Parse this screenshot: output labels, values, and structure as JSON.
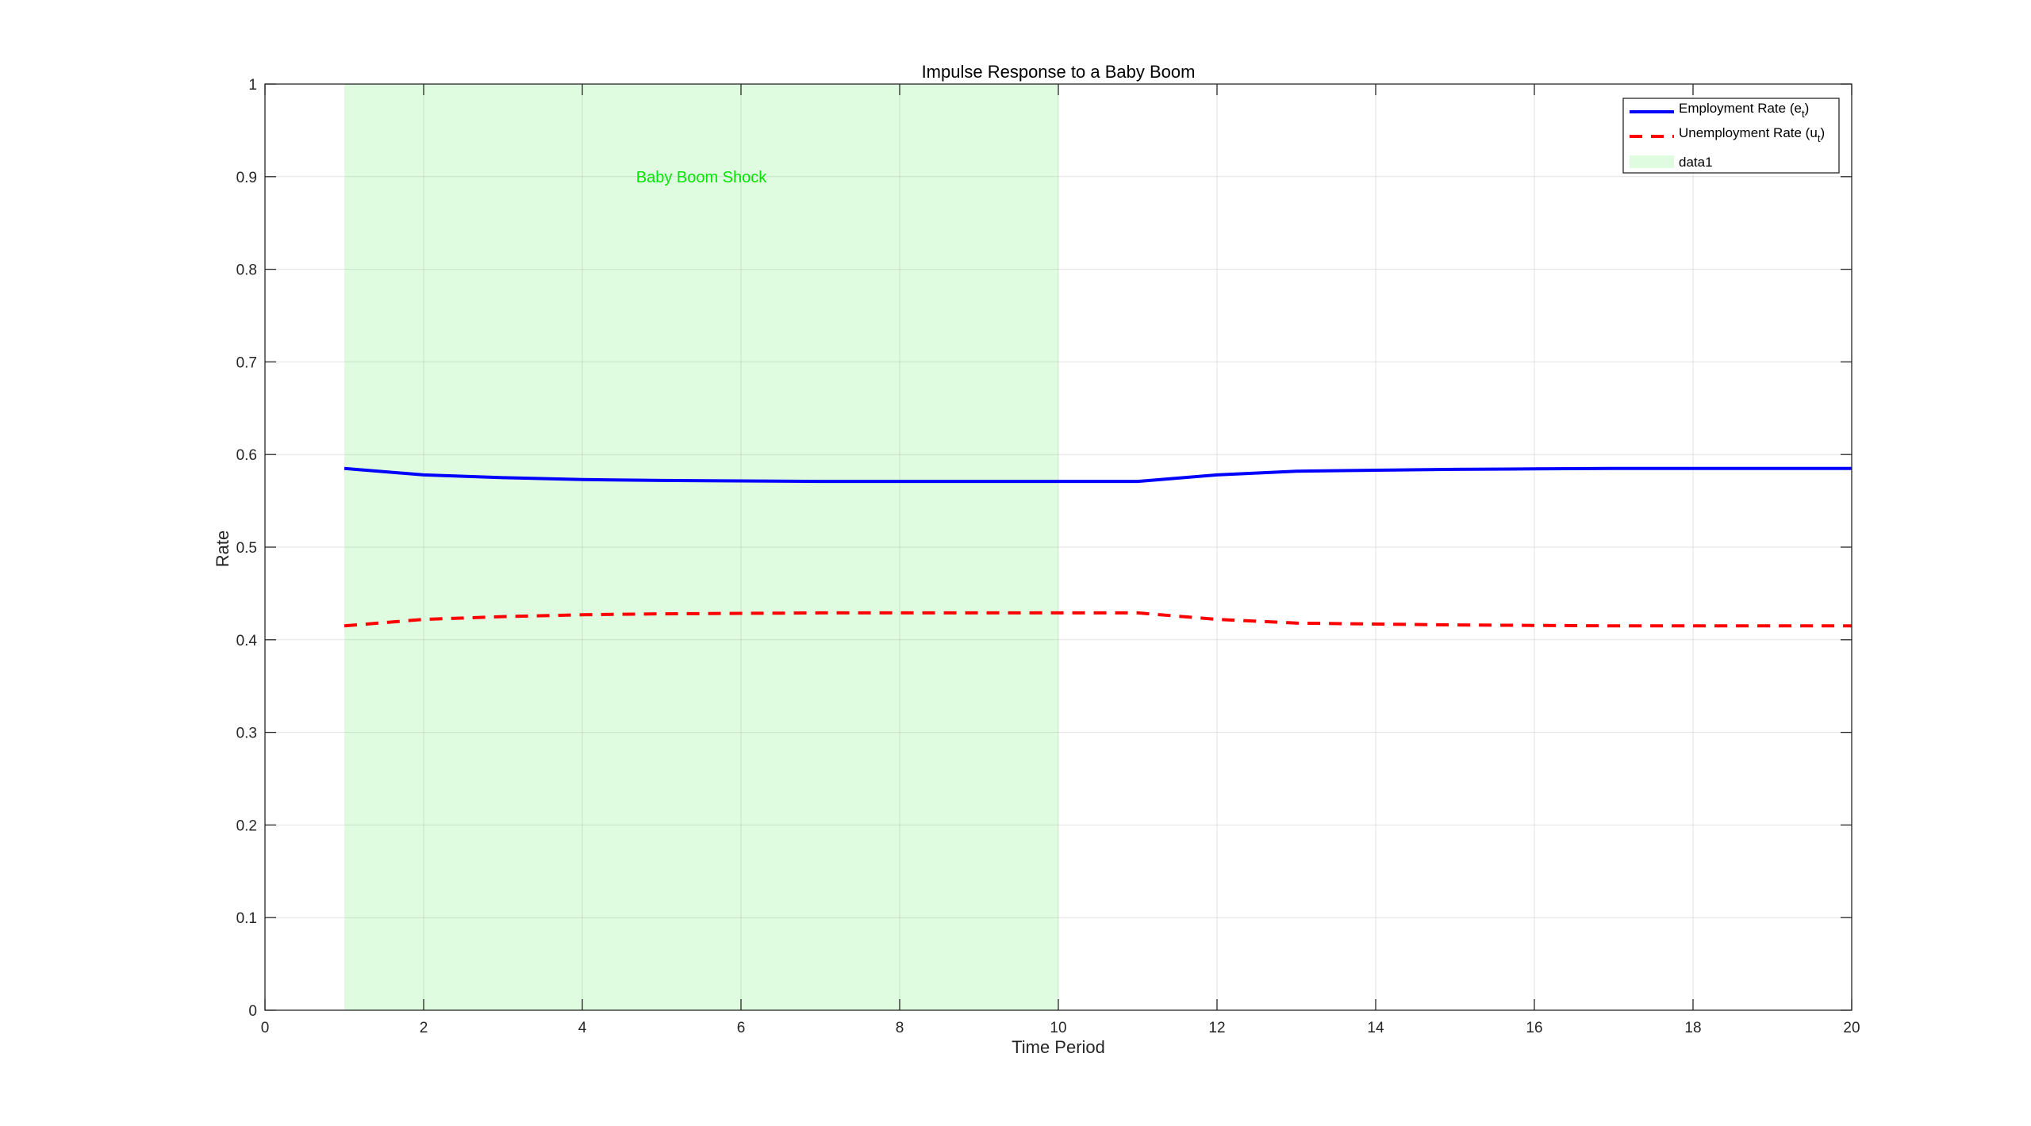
{
  "chart_data": {
    "type": "line",
    "title": "Impulse Response to a Baby Boom",
    "xlabel": "Time Period",
    "ylabel": "Rate",
    "xlim": [
      0,
      20
    ],
    "ylim": [
      0,
      1
    ],
    "xticks": [
      0,
      2,
      4,
      6,
      8,
      10,
      12,
      14,
      16,
      18,
      20
    ],
    "yticks": [
      0,
      0.1,
      0.2,
      0.3,
      0.4,
      0.5,
      0.6,
      0.7,
      0.8,
      0.9,
      1
    ],
    "grid": true,
    "legend_position": "top-right",
    "x": [
      1,
      2,
      3,
      4,
      5,
      6,
      7,
      8,
      9,
      10,
      11,
      12,
      13,
      14,
      15,
      16,
      17,
      18,
      19,
      20
    ],
    "series": [
      {
        "name": "Employment Rate (e",
        "name_sub": "t",
        "name_end": ")",
        "color": "#0000ff",
        "style": "solid",
        "values": [
          0.585,
          0.578,
          0.575,
          0.573,
          0.572,
          0.5715,
          0.571,
          0.571,
          0.571,
          0.571,
          0.571,
          0.578,
          0.582,
          0.583,
          0.584,
          0.5845,
          0.585,
          0.585,
          0.585,
          0.585
        ]
      },
      {
        "name": "Unemployment Rate (u",
        "name_sub": "t",
        "name_end": ")",
        "color": "#ff0000",
        "style": "dashed",
        "values": [
          0.415,
          0.422,
          0.425,
          0.427,
          0.428,
          0.4285,
          0.429,
          0.429,
          0.429,
          0.429,
          0.429,
          0.422,
          0.418,
          0.417,
          0.416,
          0.4155,
          0.415,
          0.415,
          0.415,
          0.415
        ]
      }
    ],
    "shaded_region": {
      "name": "data1",
      "x_start": 1,
      "x_end": 10,
      "y_start": 0,
      "y_end": 1,
      "color": "#e0fce0"
    },
    "annotation": {
      "text": "Baby Boom Shock",
      "x": 5.5,
      "y": 0.9,
      "color": "#00e600"
    }
  }
}
